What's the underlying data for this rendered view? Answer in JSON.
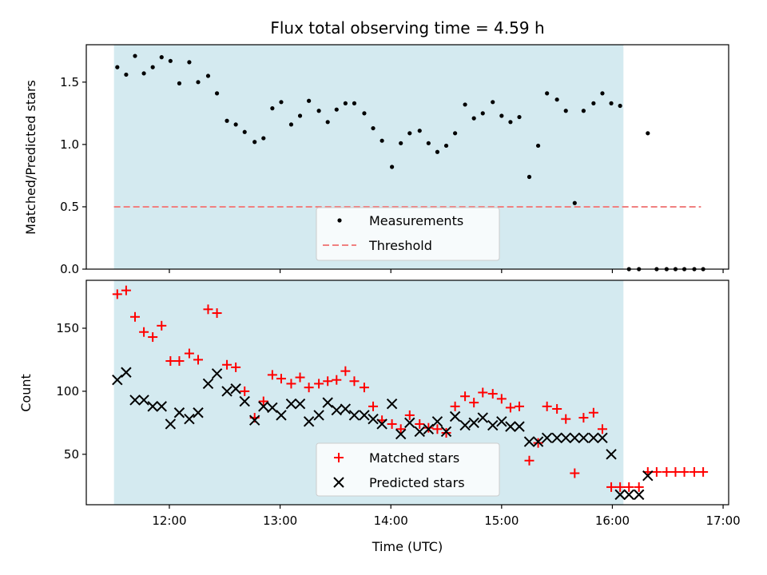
{
  "chart_data": [
    {
      "type": "scatter",
      "title": "Flux total observing time = 4.59 h",
      "xlabel": "",
      "ylabel": "Matched/Predicted stars",
      "ylim": [
        0,
        1.8
      ],
      "yticks": [
        "0.0",
        "0.5",
        "1.0",
        "1.5"
      ],
      "shaded_span": {
        "from": 11.5,
        "to": 16.1,
        "color": "#d4eaf0"
      },
      "legend_position": "lower-center",
      "series": [
        {
          "name": "Measurements",
          "marker": "dot",
          "color": "#000000",
          "x": [
            11.53,
            11.61,
            11.69,
            11.77,
            11.85,
            11.93,
            12.01,
            12.09,
            12.18,
            12.26,
            12.35,
            12.43,
            12.52,
            12.6,
            12.68,
            12.77,
            12.85,
            12.93,
            13.01,
            13.1,
            13.18,
            13.26,
            13.35,
            13.43,
            13.51,
            13.59,
            13.67,
            13.76,
            13.84,
            13.92,
            14.01,
            14.09,
            14.17,
            14.26,
            14.34,
            14.42,
            14.5,
            14.58,
            14.67,
            14.75,
            14.83,
            14.92,
            15.0,
            15.08,
            15.16,
            15.25,
            15.33,
            15.41,
            15.5,
            15.58,
            15.66,
            15.74,
            15.83,
            15.91,
            15.99,
            16.07,
            16.15,
            16.24,
            16.32,
            16.4,
            16.49,
            16.57,
            16.65,
            16.74,
            16.82
          ],
          "y": [
            1.62,
            1.56,
            1.71,
            1.57,
            1.62,
            1.7,
            1.67,
            1.49,
            1.66,
            1.5,
            1.55,
            1.41,
            1.19,
            1.16,
            1.1,
            1.02,
            1.05,
            1.29,
            1.34,
            1.16,
            1.23,
            1.35,
            1.27,
            1.18,
            1.28,
            1.33,
            1.33,
            1.25,
            1.13,
            1.03,
            0.82,
            1.01,
            1.09,
            1.11,
            1.01,
            0.94,
            0.99,
            1.09,
            1.32,
            1.21,
            1.25,
            1.34,
            1.23,
            1.18,
            1.22,
            0.74,
            0.99,
            1.41,
            1.36,
            1.27,
            0.53,
            1.27,
            1.33,
            1.41,
            1.33,
            1.31,
            0.0,
            0.0,
            1.09,
            0.0,
            0.0,
            0.0,
            0.0,
            0.0,
            0.0
          ]
        },
        {
          "name": "Threshold",
          "type": "line",
          "dashed": true,
          "color": "#f08080",
          "x": [
            11.5,
            16.8
          ],
          "y": [
            0.5,
            0.5
          ]
        }
      ]
    },
    {
      "type": "scatter",
      "title": "",
      "xlabel": "Time (UTC)",
      "ylabel": "Count",
      "ylim": [
        10,
        188
      ],
      "yticks": [
        "50",
        "100",
        "150"
      ],
      "xlim": [
        11.25,
        17.05
      ],
      "xticks": [
        {
          "value": 12,
          "label": "12:00"
        },
        {
          "value": 13,
          "label": "13:00"
        },
        {
          "value": 14,
          "label": "14:00"
        },
        {
          "value": 15,
          "label": "15:00"
        },
        {
          "value": 16,
          "label": "16:00"
        },
        {
          "value": 17,
          "label": "17:00"
        }
      ],
      "shaded_span": {
        "from": 11.5,
        "to": 16.1,
        "color": "#d4eaf0"
      },
      "legend_position": "lower-center",
      "series": [
        {
          "name": "Matched stars",
          "marker": "plus",
          "color": "#ff0000",
          "x": [
            11.53,
            11.61,
            11.69,
            11.77,
            11.85,
            11.93,
            12.01,
            12.09,
            12.18,
            12.26,
            12.35,
            12.43,
            12.52,
            12.6,
            12.68,
            12.77,
            12.85,
            12.93,
            13.01,
            13.1,
            13.18,
            13.26,
            13.35,
            13.43,
            13.51,
            13.59,
            13.67,
            13.76,
            13.84,
            13.92,
            14.01,
            14.09,
            14.17,
            14.26,
            14.34,
            14.42,
            14.5,
            14.58,
            14.67,
            14.75,
            14.83,
            14.92,
            15.0,
            15.08,
            15.16,
            15.25,
            15.33,
            15.41,
            15.5,
            15.58,
            15.66,
            15.74,
            15.83,
            15.91,
            15.99,
            16.07,
            16.15,
            16.24,
            16.32,
            16.4,
            16.49,
            16.57,
            16.65,
            16.74,
            16.82
          ],
          "y": [
            177,
            180,
            159,
            147,
            143,
            152,
            124,
            124,
            130,
            125,
            165,
            162,
            121,
            119,
            100,
            79,
            92,
            113,
            110,
            106,
            111,
            103,
            106,
            108,
            109,
            116,
            108,
            103,
            88,
            77,
            74,
            70,
            81,
            74,
            71,
            70,
            67,
            88,
            96,
            91,
            99,
            98,
            94,
            87,
            88,
            45,
            59,
            88,
            86,
            78,
            35,
            79,
            83,
            70,
            24,
            24,
            24,
            24,
            36,
            36,
            36,
            36,
            36,
            36,
            36
          ]
        },
        {
          "name": "Predicted stars",
          "marker": "x",
          "color": "#000000",
          "x": [
            11.53,
            11.61,
            11.69,
            11.77,
            11.85,
            11.93,
            12.01,
            12.09,
            12.18,
            12.26,
            12.35,
            12.43,
            12.52,
            12.6,
            12.68,
            12.77,
            12.85,
            12.93,
            13.01,
            13.1,
            13.18,
            13.26,
            13.35,
            13.43,
            13.51,
            13.59,
            13.67,
            13.76,
            13.84,
            13.92,
            14.01,
            14.09,
            14.17,
            14.26,
            14.34,
            14.42,
            14.5,
            14.58,
            14.67,
            14.75,
            14.83,
            14.92,
            15.0,
            15.08,
            15.16,
            15.25,
            15.33,
            15.41,
            15.5,
            15.58,
            15.66,
            15.74,
            15.83,
            15.91,
            15.99,
            16.07,
            16.15,
            16.24,
            16.32
          ],
          "y": [
            109,
            115,
            93,
            93,
            88,
            88,
            74,
            83,
            78,
            83,
            106,
            114,
            100,
            102,
            92,
            77,
            88,
            87,
            81,
            90,
            90,
            76,
            81,
            91,
            85,
            86,
            81,
            81,
            78,
            74,
            90,
            66,
            75,
            68,
            70,
            76,
            68,
            80,
            73,
            75,
            79,
            73,
            76,
            72,
            72,
            60,
            60,
            63,
            63,
            63,
            63,
            63,
            63,
            63,
            50,
            18,
            18,
            18,
            33
          ]
        }
      ]
    }
  ]
}
